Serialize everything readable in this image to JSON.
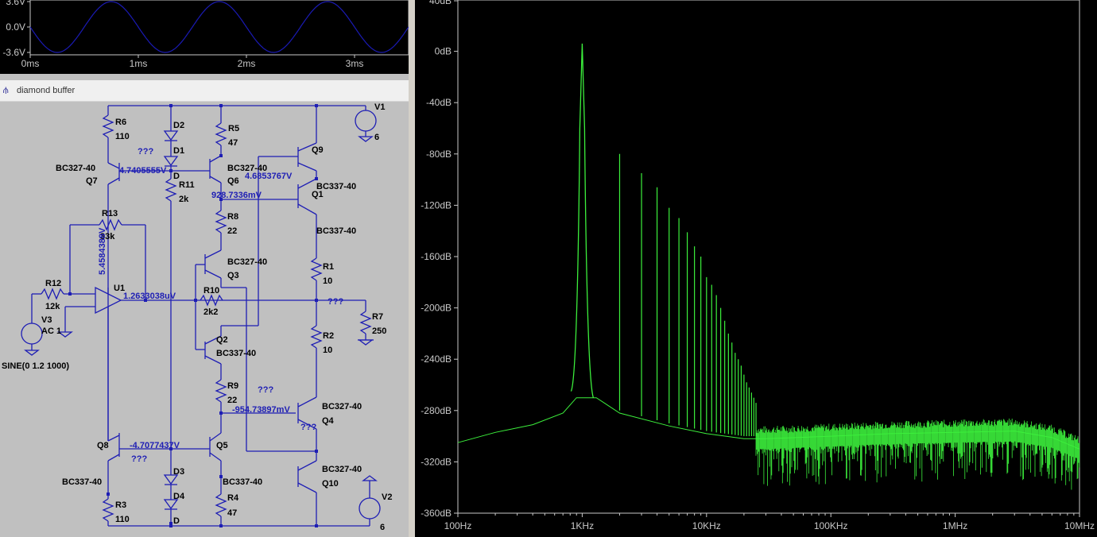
{
  "waveform": {
    "y_ticks": [
      "3.6V",
      "0.0V",
      "-3.6V"
    ],
    "x_ticks": [
      "0ms",
      "1ms",
      "2ms",
      "3ms"
    ],
    "trace_color": "#1a1ab4",
    "y_range": [
      -3.6,
      3.6
    ],
    "x_range_ms": [
      0,
      3.5
    ],
    "frequency_hz": 1000,
    "amplitude_v": 3.6
  },
  "schematic": {
    "window_title": "diamond buffer",
    "icon": "schematic-icon",
    "wire_color": "#1e1eb4",
    "components": [
      {
        "id": "R6",
        "value": "110"
      },
      {
        "id": "D2",
        "value": ""
      },
      {
        "id": "D1",
        "value": ""
      },
      {
        "id": "R5",
        "value": "47"
      },
      {
        "id": "Q9",
        "value": ""
      },
      {
        "id": "V1",
        "value": "6"
      },
      {
        "id": "Q7",
        "value": "BC327-40"
      },
      {
        "id": "Q6",
        "value": "BC327-40"
      },
      {
        "id": "Q1",
        "value": "BC337-40"
      },
      {
        "id": "R11",
        "value": "2k"
      },
      {
        "id": "R13",
        "value": "33k"
      },
      {
        "id": "R8",
        "value": "22"
      },
      {
        "id": "Q3",
        "value": "BC327-40"
      },
      {
        "id": "R1",
        "value": "10"
      },
      {
        "id": "R12",
        "value": "12k"
      },
      {
        "id": "U1",
        "value": ""
      },
      {
        "id": "R10",
        "value": "2k2"
      },
      {
        "id": "R7",
        "value": "250"
      },
      {
        "id": "V3",
        "value": "AC 1"
      },
      {
        "id": "Q2",
        "value": "BC337-40"
      },
      {
        "id": "R2",
        "value": "10"
      },
      {
        "id": "R9",
        "value": "22"
      },
      {
        "id": "Q4",
        "value": "BC327-40"
      },
      {
        "id": "Q8",
        "value": "BC337-40"
      },
      {
        "id": "Q5",
        "value": ""
      },
      {
        "id": "Q10",
        "value": "BC327-40"
      },
      {
        "id": "D3",
        "value": ""
      },
      {
        "id": "D4",
        "value": ""
      },
      {
        "id": "D",
        "value": ""
      },
      {
        "id": "V2",
        "value": "6"
      },
      {
        "id": "R4",
        "value": "47"
      },
      {
        "id": "R3",
        "value": "110"
      }
    ],
    "extra_labels": {
      "q9_model": "BC337-40",
      "q5_model": "BC337-40",
      "d_top": "D",
      "source_spec": "SINE(0 1.2 1000)"
    },
    "node_values": [
      "???",
      "4.7405555V",
      "4.6853767V",
      "928.7336mV",
      "5.4584388V",
      "1.2633038uV",
      "???",
      "???",
      "-954.73897mV",
      "???",
      "-4.7077437V",
      "???"
    ]
  },
  "fft": {
    "trace_color": "#3cf03c",
    "y_ticks": [
      "40dB",
      "0dB",
      "-40dB",
      "-80dB",
      "-120dB",
      "-160dB",
      "-200dB",
      "-240dB",
      "-280dB",
      "-320dB",
      "-360dB"
    ],
    "x_ticks": [
      "100Hz",
      "1KHz",
      "10KHz",
      "100KHz",
      "1MHz",
      "10MHz"
    ]
  },
  "chart_data": {
    "type": "line",
    "x_scale": "log",
    "x_range_hz": [
      100,
      10000000
    ],
    "y_range_db": [
      -360,
      40
    ],
    "grid": false,
    "fundamental": {
      "freq_hz": 1000,
      "db": 6
    },
    "harmonics": [
      {
        "freq_hz": 2000,
        "db": -80
      },
      {
        "freq_hz": 3000,
        "db": -95
      },
      {
        "freq_hz": 4000,
        "db": -106
      },
      {
        "freq_hz": 5000,
        "db": -122
      },
      {
        "freq_hz": 6000,
        "db": -130
      },
      {
        "freq_hz": 7000,
        "db": -141
      },
      {
        "freq_hz": 8000,
        "db": -152
      },
      {
        "freq_hz": 9000,
        "db": -160
      },
      {
        "freq_hz": 10000,
        "db": -176
      },
      {
        "freq_hz": 11000,
        "db": -182
      },
      {
        "freq_hz": 12000,
        "db": -190
      },
      {
        "freq_hz": 13000,
        "db": -200
      },
      {
        "freq_hz": 14000,
        "db": -210
      },
      {
        "freq_hz": 15000,
        "db": -220
      },
      {
        "freq_hz": 16000,
        "db": -227
      },
      {
        "freq_hz": 17000,
        "db": -235
      },
      {
        "freq_hz": 18000,
        "db": -240
      },
      {
        "freq_hz": 19000,
        "db": -245
      },
      {
        "freq_hz": 20000,
        "db": -252
      },
      {
        "freq_hz": 21000,
        "db": -258
      },
      {
        "freq_hz": 22000,
        "db": -262
      },
      {
        "freq_hz": 23000,
        "db": -266
      },
      {
        "freq_hz": 24000,
        "db": -270
      },
      {
        "freq_hz": 25000,
        "db": -274
      }
    ],
    "noise_floor": [
      {
        "freq_hz": 100,
        "db": -305
      },
      {
        "freq_hz": 200,
        "db": -297
      },
      {
        "freq_hz": 400,
        "db": -291
      },
      {
        "freq_hz": 700,
        "db": -282
      },
      {
        "freq_hz": 900,
        "db": -270
      },
      {
        "freq_hz": 1300,
        "db": -270
      },
      {
        "freq_hz": 2000,
        "db": -282
      },
      {
        "freq_hz": 5000,
        "db": -292
      },
      {
        "freq_hz": 10000,
        "db": -298
      },
      {
        "freq_hz": 20000,
        "db": -302
      },
      {
        "freq_hz": 30000,
        "db": -302
      },
      {
        "freq_hz": 100000,
        "db": -300
      },
      {
        "freq_hz": 300000,
        "db": -298
      },
      {
        "freq_hz": 1000000,
        "db": -297
      },
      {
        "freq_hz": 3000000,
        "db": -296
      },
      {
        "freq_hz": 6000000,
        "db": -301
      },
      {
        "freq_hz": 10000000,
        "db": -310
      }
    ]
  }
}
